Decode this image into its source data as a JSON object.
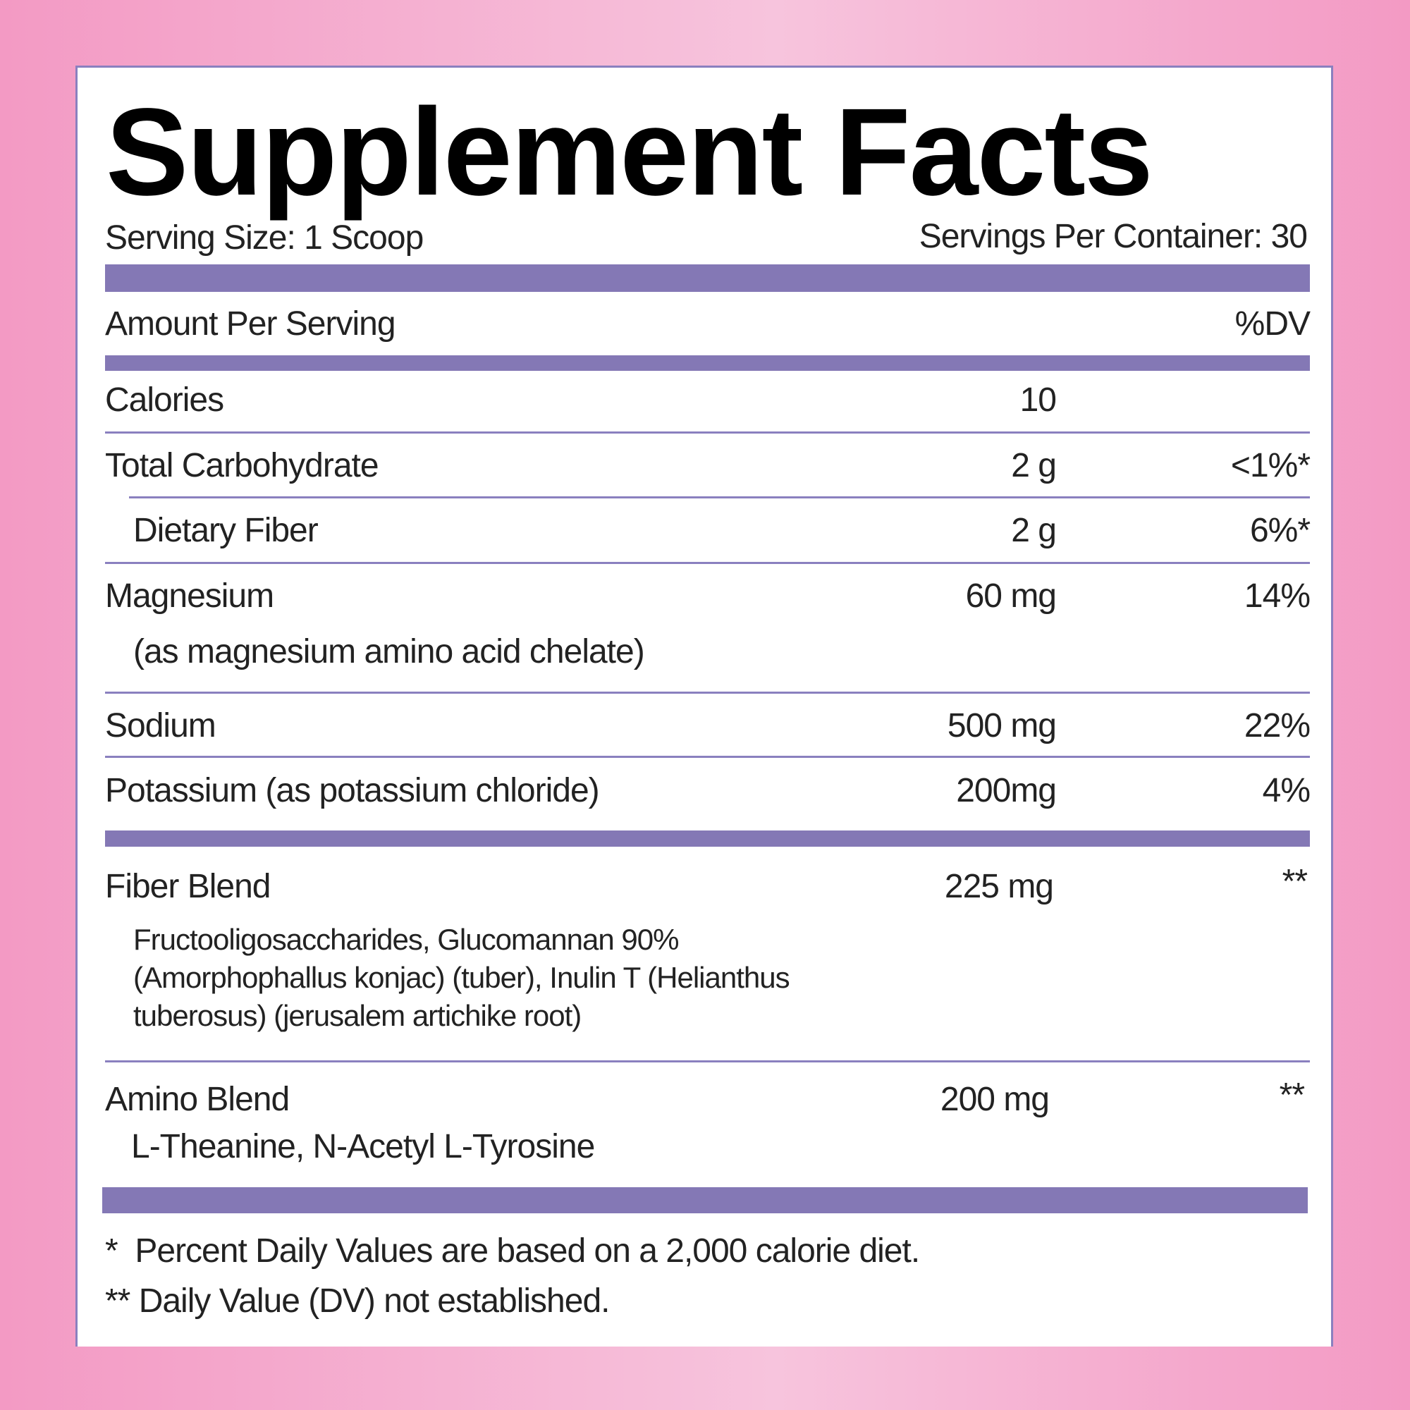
{
  "title": "Supplement Facts",
  "serving_size": "Serving Size: 1 Scoop",
  "servings_per_container": "Servings Per Container: 30",
  "header": {
    "amount_label": "Amount Per Serving",
    "dv_label": "%DV"
  },
  "rows": [
    {
      "name": "Calories",
      "amount": "10",
      "dv": ""
    },
    {
      "name": "Total Carbohydrate",
      "amount": "2 g",
      "dv": "<1%*"
    },
    {
      "name": "Dietary Fiber",
      "amount": "2 g",
      "dv": "6%*"
    },
    {
      "name": "Magnesium",
      "detail": "(as magnesium amino acid chelate)",
      "amount": "60 mg",
      "dv": "14%"
    },
    {
      "name": "Sodium",
      "amount": "500 mg",
      "dv": "22%"
    },
    {
      "name": "Potassium (as potassium chloride)",
      "amount": "200mg",
      "dv": "4%"
    }
  ],
  "blends": [
    {
      "name": "Fiber Blend",
      "amount": "225 mg",
      "dv": "**",
      "detail_lines": [
        "Fructooligosaccharides, Glucomannan 90%",
        "(Amorphophallus konjac) (tuber), Inulin T (Helianthus",
        "tuberosus) (jerusalem artichike root)"
      ]
    },
    {
      "name": "Amino Blend",
      "amount": "200 mg",
      "dv": "**",
      "detail_lines": [
        "L-Theanine, N-Acetyl L-Tyrosine"
      ]
    }
  ],
  "footnotes": [
    "*  Percent Daily Values are based on a 2,000 calorie diet.",
    "** Daily Value (DV) not established."
  ],
  "colors": {
    "accent": "#8478b5",
    "background": "#f39ac4",
    "text": "#222222"
  }
}
